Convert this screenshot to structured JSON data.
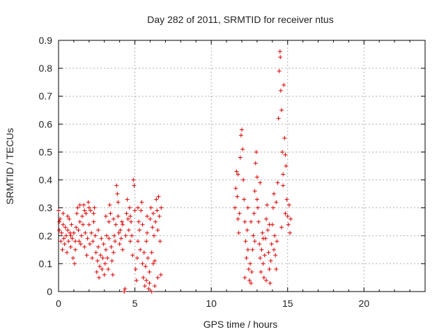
{
  "chart_data": {
    "type": "scatter",
    "title": "Day 282 of 2011, SRMTID for receiver ntus",
    "xlabel": "GPS time / hours",
    "ylabel": "SRMTID / TECUs",
    "xlim": [
      0,
      24
    ],
    "ylim": [
      0,
      0.9
    ],
    "xticks": [
      "0",
      "5",
      "10",
      "15",
      "20"
    ],
    "yticks": [
      "0",
      "0.1",
      "0.2",
      "0.3",
      "0.4",
      "0.5",
      "0.6",
      "0.7",
      "0.8",
      "0.9"
    ],
    "grid": true,
    "marker": "plus",
    "color": "#dd0000",
    "series": [
      {
        "points": [
          [
            0.0,
            0.29
          ],
          [
            0.05,
            0.22
          ],
          [
            0.1,
            0.26
          ],
          [
            0.15,
            0.18
          ],
          [
            0.2,
            0.21
          ],
          [
            0.25,
            0.15
          ],
          [
            0.3,
            0.24
          ],
          [
            0.35,
            0.19
          ],
          [
            0.4,
            0.17
          ],
          [
            0.45,
            0.23
          ],
          [
            0.5,
            0.2
          ],
          [
            0.55,
            0.14
          ],
          [
            0.6,
            0.22
          ],
          [
            0.65,
            0.18
          ],
          [
            0.7,
            0.26
          ],
          [
            0.75,
            0.21
          ],
          [
            0.8,
            0.16
          ],
          [
            0.85,
            0.24
          ],
          [
            0.9,
            0.19
          ],
          [
            0.95,
            0.12
          ],
          [
            1.0,
            0.21
          ],
          [
            1.05,
            0.1
          ],
          [
            1.1,
            0.15
          ],
          [
            1.15,
            0.23
          ],
          [
            1.2,
            0.28
          ],
          [
            1.25,
            0.3
          ],
          [
            1.3,
            0.22
          ],
          [
            1.35,
            0.18
          ],
          [
            1.4,
            0.25
          ],
          [
            1.45,
            0.17
          ],
          [
            1.5,
            0.2
          ],
          [
            1.55,
            0.27
          ],
          [
            1.6,
            0.24
          ],
          [
            1.65,
            0.31
          ],
          [
            1.7,
            0.16
          ],
          [
            1.75,
            0.21
          ],
          [
            1.8,
            0.28
          ],
          [
            1.85,
            0.13
          ],
          [
            1.9,
            0.19
          ],
          [
            1.95,
            0.32
          ],
          [
            2.0,
            0.24
          ],
          [
            2.05,
            0.17
          ],
          [
            2.1,
            0.29
          ],
          [
            2.15,
            0.21
          ],
          [
            2.2,
            0.12
          ],
          [
            2.25,
            0.18
          ],
          [
            2.3,
            0.25
          ],
          [
            2.35,
            0.3
          ],
          [
            2.4,
            0.2
          ],
          [
            2.45,
            0.14
          ],
          [
            2.5,
            0.07
          ],
          [
            2.55,
            0.11
          ],
          [
            2.6,
            0.16
          ],
          [
            2.65,
            0.05
          ],
          [
            2.7,
            0.09
          ],
          [
            2.75,
            0.13
          ],
          [
            2.8,
            0.19
          ],
          [
            2.85,
            0.08
          ],
          [
            2.9,
            0.12
          ],
          [
            2.95,
            0.17
          ],
          [
            3.0,
            0.06
          ],
          [
            3.05,
            0.1
          ],
          [
            3.1,
            0.15
          ],
          [
            3.15,
            0.2
          ],
          [
            3.2,
            0.12
          ],
          [
            3.25,
            0.08
          ],
          [
            3.3,
            0.25
          ],
          [
            3.35,
            0.31
          ],
          [
            3.4,
            0.28
          ],
          [
            3.45,
            0.16
          ],
          [
            3.5,
            0.11
          ],
          [
            3.55,
            0.06
          ],
          [
            3.6,
            0.14
          ],
          [
            3.65,
            0.2
          ],
          [
            3.7,
            0.18
          ],
          [
            3.75,
            0.24
          ],
          [
            3.8,
            0.38
          ],
          [
            3.85,
            0.35
          ],
          [
            3.9,
            0.27
          ],
          [
            3.95,
            0.21
          ],
          [
            4.0,
            0.17
          ],
          [
            4.05,
            0.22
          ],
          [
            4.1,
            0.19
          ],
          [
            4.15,
            0.25
          ],
          [
            4.2,
            0.15
          ],
          [
            4.3,
            0.0
          ],
          [
            4.35,
            0.01
          ],
          [
            4.4,
            0.2
          ],
          [
            4.45,
            0.28
          ],
          [
            4.5,
            0.33
          ],
          [
            4.55,
            0.26
          ],
          [
            4.6,
            0.22
          ],
          [
            4.65,
            0.3
          ],
          [
            4.7,
            0.18
          ],
          [
            4.75,
            0.25
          ],
          [
            4.8,
            0.2
          ],
          [
            4.85,
            0.13
          ],
          [
            4.9,
            0.4
          ],
          [
            4.95,
            0.38
          ],
          [
            5.0,
            0.29
          ],
          [
            5.05,
            0.08
          ],
          [
            5.1,
            0.04
          ],
          [
            5.15,
            0.12
          ],
          [
            5.2,
            0.18
          ],
          [
            5.25,
            0.25
          ],
          [
            5.3,
            0.22
          ],
          [
            5.35,
            0.15
          ],
          [
            5.4,
            0.29
          ],
          [
            5.45,
            0.32
          ],
          [
            5.5,
            0.1
          ],
          [
            5.55,
            0.05
          ],
          [
            5.6,
            0.14
          ],
          [
            5.65,
            0.02
          ],
          [
            5.7,
            0.09
          ],
          [
            5.75,
            0.18
          ],
          [
            5.8,
            0.21
          ],
          [
            5.85,
            0.12
          ],
          [
            5.9,
            0.01
          ],
          [
            5.95,
            0.07
          ],
          [
            6.0,
            0.26
          ],
          [
            6.05,
            0.3
          ],
          [
            6.1,
            0.14
          ],
          [
            6.15,
            0.23
          ],
          [
            6.2,
            0.28
          ],
          [
            6.25,
            0.2
          ],
          [
            6.3,
            0.11
          ],
          [
            6.35,
            0.25
          ],
          [
            6.4,
            0.33
          ],
          [
            6.45,
            0.29
          ],
          [
            6.5,
            0.22
          ],
          [
            6.55,
            0.34
          ],
          [
            6.6,
            0.27
          ],
          [
            6.65,
            0.18
          ],
          [
            6.7,
            0.06
          ],
          [
            6.72,
            0.3
          ],
          [
            6.5,
            0.05
          ],
          [
            6.3,
            0.02
          ],
          [
            6.1,
            0.0
          ],
          [
            5.95,
            0.03
          ],
          [
            5.75,
            0.04
          ],
          [
            0.05,
            0.25
          ],
          [
            0.3,
            0.28
          ],
          [
            0.6,
            0.27
          ],
          [
            0.8,
            0.2
          ],
          [
            1.1,
            0.18
          ],
          [
            1.4,
            0.31
          ],
          [
            1.7,
            0.29
          ],
          [
            2.0,
            0.3
          ],
          [
            2.3,
            0.28
          ],
          [
            2.6,
            0.22
          ],
          [
            3.1,
            0.27
          ],
          [
            3.3,
            0.19
          ],
          [
            3.6,
            0.26
          ],
          [
            3.9,
            0.32
          ],
          [
            4.2,
            0.24
          ],
          [
            4.7,
            0.27
          ],
          [
            5.2,
            0.3
          ],
          [
            5.5,
            0.24
          ],
          [
            5.8,
            0.27
          ],
          [
            6.2,
            0.1
          ],
          [
            11.55,
            0.3
          ],
          [
            11.6,
            0.37
          ],
          [
            11.65,
            0.43
          ],
          [
            11.7,
            0.34
          ],
          [
            11.75,
            0.26
          ],
          [
            11.8,
            0.21
          ],
          [
            11.85,
            0.28
          ],
          [
            11.9,
            0.48
          ],
          [
            11.95,
            0.56
          ],
          [
            12.0,
            0.58
          ],
          [
            12.05,
            0.51
          ],
          [
            12.1,
            0.4
          ],
          [
            12.15,
            0.33
          ],
          [
            12.2,
            0.25
          ],
          [
            12.25,
            0.18
          ],
          [
            12.3,
            0.12
          ],
          [
            12.35,
            0.22
          ],
          [
            12.4,
            0.15
          ],
          [
            12.45,
            0.08
          ],
          [
            12.5,
            0.04
          ],
          [
            12.55,
            0.1
          ],
          [
            12.6,
            0.03
          ],
          [
            12.65,
            0.07
          ],
          [
            12.7,
            0.15
          ],
          [
            12.75,
            0.2
          ],
          [
            12.8,
            0.28
          ],
          [
            12.85,
            0.36
          ],
          [
            12.9,
            0.46
          ],
          [
            12.95,
            0.5
          ],
          [
            13.0,
            0.41
          ],
          [
            13.05,
            0.3
          ],
          [
            13.1,
            0.25
          ],
          [
            13.15,
            0.17
          ],
          [
            13.2,
            0.12
          ],
          [
            13.25,
            0.07
          ],
          [
            13.3,
            0.15
          ],
          [
            13.35,
            0.21
          ],
          [
            13.4,
            0.1
          ],
          [
            13.45,
            0.05
          ],
          [
            13.5,
            0.13
          ],
          [
            13.55,
            0.19
          ],
          [
            13.6,
            0.26
          ],
          [
            13.65,
            0.31
          ],
          [
            13.7,
            0.22
          ],
          [
            13.75,
            0.14
          ],
          [
            13.8,
            0.08
          ],
          [
            13.85,
            0.03
          ],
          [
            13.9,
            0.11
          ],
          [
            13.95,
            0.17
          ],
          [
            14.0,
            0.24
          ],
          [
            14.05,
            0.3
          ],
          [
            14.1,
            0.35
          ],
          [
            14.15,
            0.2
          ],
          [
            14.2,
            0.13
          ],
          [
            14.25,
            0.08
          ],
          [
            14.3,
            0.18
          ],
          [
            14.35,
            0.39
          ],
          [
            14.4,
            0.62
          ],
          [
            14.45,
            0.79
          ],
          [
            14.5,
            0.86
          ],
          [
            14.52,
            0.84
          ],
          [
            14.55,
            0.72
          ],
          [
            14.6,
            0.65
          ],
          [
            14.65,
            0.5
          ],
          [
            14.7,
            0.42
          ],
          [
            14.75,
            0.74
          ],
          [
            14.8,
            0.55
          ],
          [
            14.85,
            0.49
          ],
          [
            14.9,
            0.45
          ],
          [
            14.95,
            0.33
          ],
          [
            15.0,
            0.27
          ],
          [
            15.05,
            0.24
          ],
          [
            15.1,
            0.31
          ],
          [
            15.15,
            0.21
          ],
          [
            15.2,
            0.26
          ],
          [
            14.25,
            0.32
          ],
          [
            14.6,
            0.23
          ],
          [
            14.85,
            0.28
          ],
          [
            13.2,
            0.39
          ],
          [
            12.85,
            0.18
          ],
          [
            12.2,
            0.05
          ],
          [
            12.6,
            0.25
          ],
          [
            13.0,
            0.33
          ],
          [
            13.4,
            0.19
          ],
          [
            13.8,
            0.24
          ],
          [
            14.1,
            0.15
          ],
          [
            11.75,
            0.42
          ],
          [
            12.4,
            0.3
          ],
          [
            13.6,
            0.04
          ],
          [
            14.7,
            0.38
          ]
        ]
      }
    ]
  }
}
